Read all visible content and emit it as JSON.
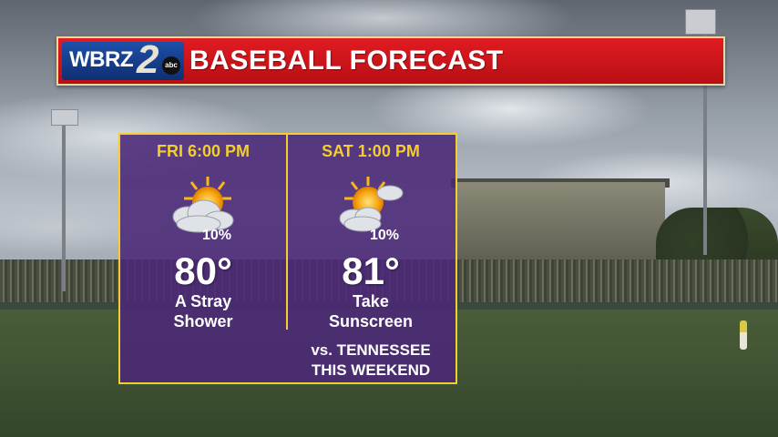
{
  "header": {
    "logo_text": "WBRZ",
    "logo_number": "2",
    "logo_network": "abc",
    "title": "BASEBALL FORECAST"
  },
  "forecast": [
    {
      "time": "FRI 6:00 PM",
      "icon": "partly-cloudy-sun-icon",
      "precip_chance": "10%",
      "temperature": "80°",
      "description_line1": "A Stray",
      "description_line2": "Shower"
    },
    {
      "time": "SAT 1:00 PM",
      "icon": "partly-cloudy-sun-icon",
      "precip_chance": "10%",
      "temperature": "81°",
      "description_line1": "Take",
      "description_line2": "Sunscreen"
    }
  ],
  "note": {
    "line1": "vs. TENNESSEE",
    "line2": "THIS WEEKEND"
  },
  "colors": {
    "header_red": "#e01c22",
    "panel_purple": "#4b2878",
    "accent_gold": "#f2cf2c"
  }
}
